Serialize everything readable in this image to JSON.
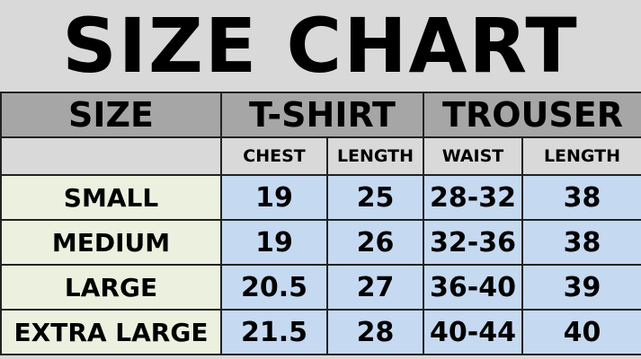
{
  "title": "SIZE CHART",
  "headers": {
    "size": "SIZE",
    "tshirt": "T-SHIRT",
    "trouser": "TROUSER"
  },
  "subheaders": [
    "CHEST",
    "LENGTH",
    "WAIST",
    "LENGTH"
  ],
  "colors": {
    "title_bg": "#d9d9d9",
    "header_bg": "#a6a6a6",
    "size_col_bg": "#ebf1de",
    "data_bg": "#c5d9f1"
  },
  "rows": [
    {
      "size": "SMALL",
      "values": [
        "19",
        "25",
        "28-32",
        "38"
      ]
    },
    {
      "size": "MEDIUM",
      "values": [
        "19",
        "26",
        "32-36",
        "38"
      ]
    },
    {
      "size": "LARGE",
      "values": [
        "20.5",
        "27",
        "36-40",
        "39"
      ]
    },
    {
      "size": "EXTRA LARGE",
      "values": [
        "21.5",
        "28",
        "40-44",
        "40"
      ]
    }
  ]
}
